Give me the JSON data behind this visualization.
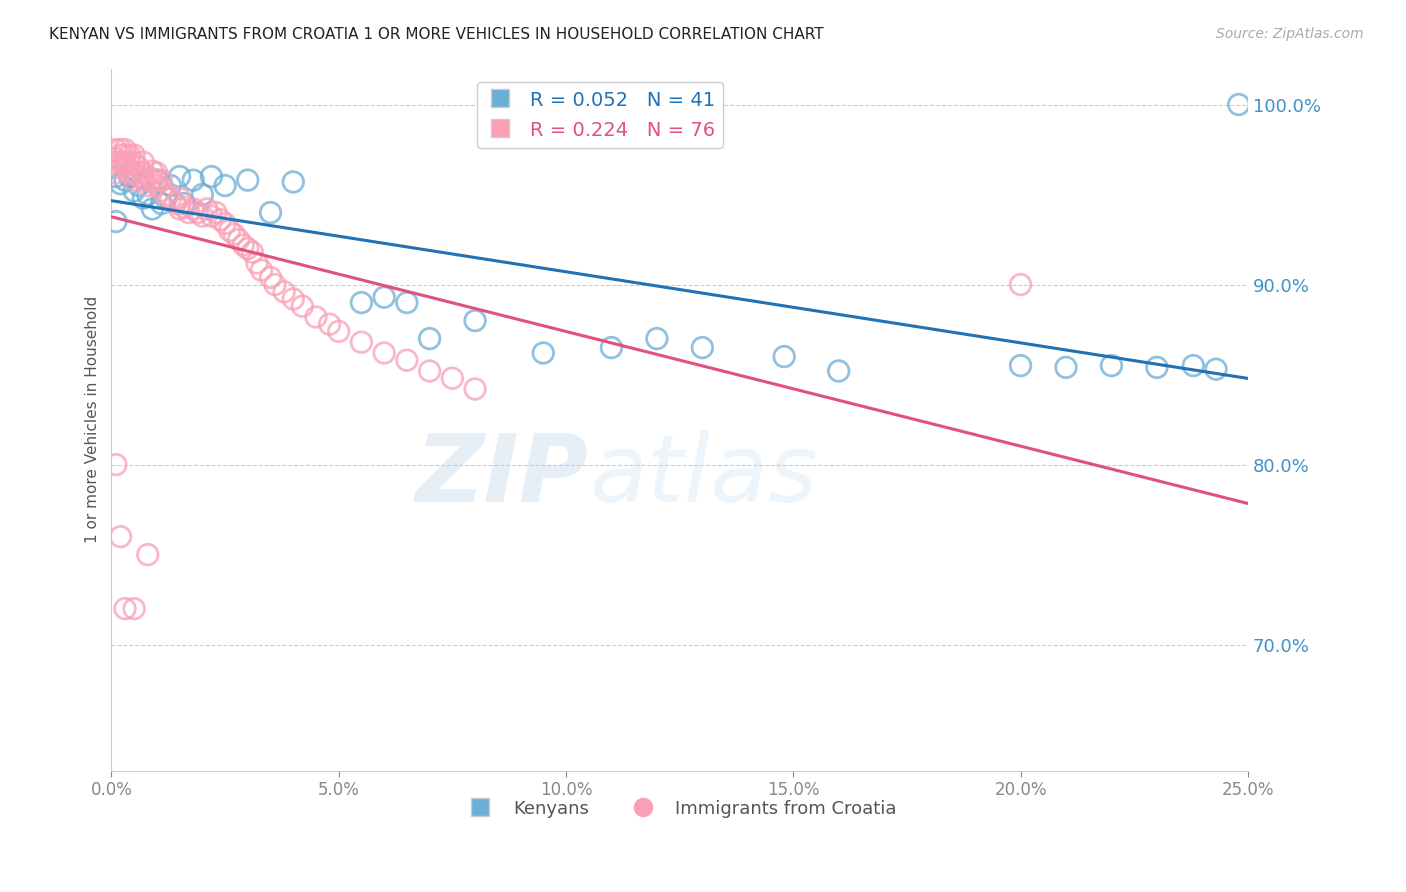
{
  "title": "KENYAN VS IMMIGRANTS FROM CROATIA 1 OR MORE VEHICLES IN HOUSEHOLD CORRELATION CHART",
  "source": "Source: ZipAtlas.com",
  "ylabel": "1 or more Vehicles in Household",
  "xlim": [
    0.0,
    0.25
  ],
  "ylim": [
    0.63,
    1.02
  ],
  "xticks": [
    0.0,
    0.05,
    0.1,
    0.15,
    0.2,
    0.25
  ],
  "yticks": [
    0.7,
    0.8,
    0.9,
    1.0
  ],
  "blue_color": "#6baed6",
  "pink_color": "#fa9fb5",
  "blue_line_color": "#2171b5",
  "pink_line_color": "#e05080",
  "R_blue": 0.052,
  "N_blue": 41,
  "R_pink": 0.224,
  "N_pink": 76,
  "legend_labels": [
    "Kenyans",
    "Immigrants from Croatia"
  ],
  "blue_x": [
    0.001,
    0.002,
    0.003,
    0.004,
    0.005,
    0.006,
    0.007,
    0.008,
    0.009,
    0.01,
    0.011,
    0.012,
    0.013,
    0.015,
    0.016,
    0.018,
    0.02,
    0.022,
    0.025,
    0.03,
    0.035,
    0.04,
    0.055,
    0.06,
    0.065,
    0.07,
    0.08,
    0.095,
    0.11,
    0.12,
    0.13,
    0.148,
    0.16,
    0.2,
    0.21,
    0.22,
    0.23,
    0.238,
    0.243,
    0.248,
    0.001
  ],
  "blue_y": [
    0.96,
    0.956,
    0.958,
    0.96,
    0.952,
    0.955,
    0.948,
    0.95,
    0.942,
    0.958,
    0.945,
    0.948,
    0.955,
    0.96,
    0.945,
    0.958,
    0.95,
    0.96,
    0.955,
    0.958,
    0.94,
    0.957,
    0.89,
    0.893,
    0.89,
    0.87,
    0.88,
    0.862,
    0.865,
    0.87,
    0.865,
    0.86,
    0.852,
    0.855,
    0.854,
    0.855,
    0.854,
    0.855,
    0.853,
    1.0,
    0.935
  ],
  "pink_x": [
    0.001,
    0.001,
    0.001,
    0.001,
    0.002,
    0.002,
    0.002,
    0.002,
    0.003,
    0.003,
    0.003,
    0.003,
    0.004,
    0.004,
    0.004,
    0.005,
    0.005,
    0.005,
    0.005,
    0.006,
    0.006,
    0.007,
    0.007,
    0.007,
    0.008,
    0.008,
    0.009,
    0.009,
    0.01,
    0.01,
    0.01,
    0.011,
    0.011,
    0.012,
    0.013,
    0.014,
    0.015,
    0.015,
    0.016,
    0.017,
    0.018,
    0.019,
    0.02,
    0.021,
    0.022,
    0.023,
    0.024,
    0.025,
    0.026,
    0.027,
    0.028,
    0.029,
    0.03,
    0.031,
    0.032,
    0.033,
    0.035,
    0.036,
    0.038,
    0.04,
    0.042,
    0.045,
    0.048,
    0.05,
    0.055,
    0.06,
    0.065,
    0.07,
    0.075,
    0.08,
    0.001,
    0.002,
    0.003,
    0.005,
    0.008,
    0.2
  ],
  "pink_y": [
    0.968,
    0.962,
    0.97,
    0.975,
    0.965,
    0.968,
    0.972,
    0.975,
    0.966,
    0.968,
    0.972,
    0.975,
    0.962,
    0.968,
    0.972,
    0.958,
    0.962,
    0.968,
    0.972,
    0.96,
    0.965,
    0.958,
    0.962,
    0.968,
    0.955,
    0.96,
    0.958,
    0.963,
    0.955,
    0.958,
    0.962,
    0.952,
    0.958,
    0.95,
    0.948,
    0.945,
    0.942,
    0.948,
    0.943,
    0.94,
    0.942,
    0.94,
    0.938,
    0.942,
    0.938,
    0.94,
    0.936,
    0.934,
    0.93,
    0.928,
    0.925,
    0.922,
    0.92,
    0.918,
    0.912,
    0.908,
    0.904,
    0.9,
    0.896,
    0.892,
    0.888,
    0.882,
    0.878,
    0.874,
    0.868,
    0.862,
    0.858,
    0.852,
    0.848,
    0.842,
    0.8,
    0.76,
    0.72,
    0.72,
    0.75,
    0.9
  ],
  "watermark_zip": "ZIP",
  "watermark_atlas": "atlas",
  "background_color": "#ffffff"
}
